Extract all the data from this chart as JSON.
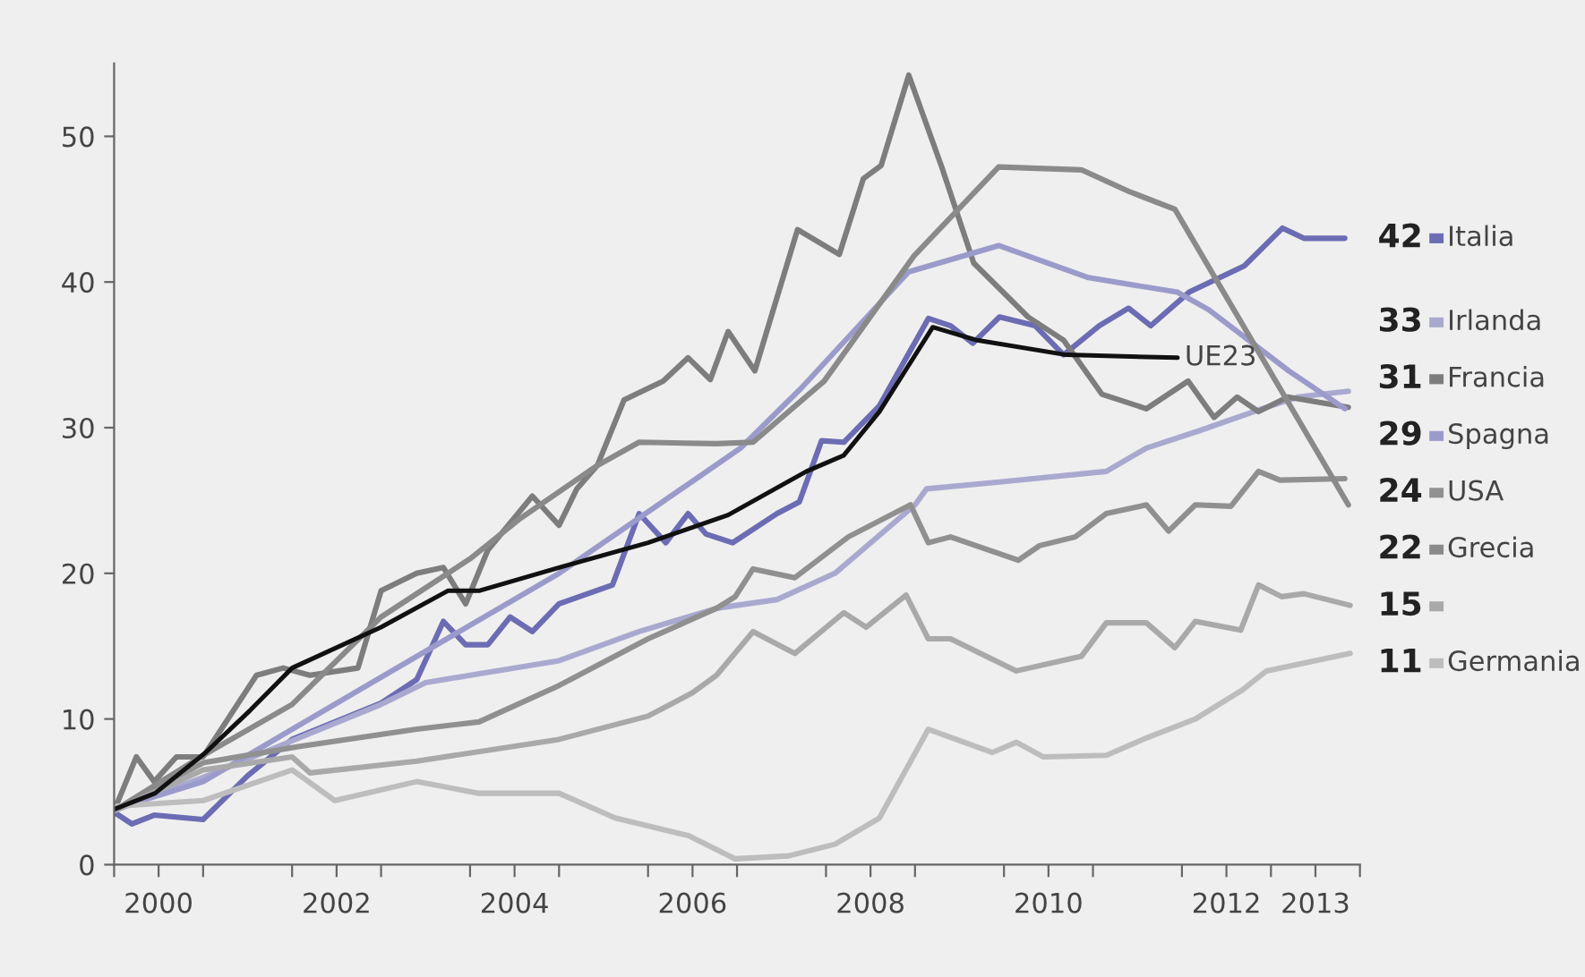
{
  "chart_data": {
    "type": "line",
    "xlim": [
      2000,
      2014
    ],
    "ylim": [
      0,
      55
    ],
    "xticks": [
      {
        "value": 2000,
        "label": null
      },
      {
        "value": 2001,
        "label": null
      },
      {
        "value": 2002,
        "label": null
      },
      {
        "value": 2003,
        "label": null
      },
      {
        "value": 2004,
        "label": null
      },
      {
        "value": 2005,
        "label": null
      },
      {
        "value": 2006,
        "label": null
      },
      {
        "value": 2007,
        "label": null
      },
      {
        "value": 2008,
        "label": null
      },
      {
        "value": 2009,
        "label": null
      },
      {
        "value": 2010,
        "label": null
      },
      {
        "value": 2011,
        "label": null
      },
      {
        "value": 2012,
        "label": null
      },
      {
        "value": 2013,
        "label": null
      },
      {
        "value": 2014,
        "label": null
      },
      {
        "value": 2000.5,
        "label": "2000"
      },
      {
        "value": 2002.5,
        "label": "2002"
      },
      {
        "value": 2004.5,
        "label": "2004"
      },
      {
        "value": 2006.5,
        "label": "2006"
      },
      {
        "value": 2008.5,
        "label": "2008"
      },
      {
        "value": 2010.5,
        "label": "2010"
      },
      {
        "value": 2012.5,
        "label": "2012"
      },
      {
        "value": 2013.5,
        "label": "2013"
      }
    ],
    "yticks": [
      0,
      10,
      20,
      30,
      40,
      50
    ],
    "grid": false,
    "legend": "right",
    "annotations": [
      "42",
      "33",
      "31",
      "29",
      "24",
      "22",
      "15",
      "11"
    ],
    "series": [
      {
        "name": "Italia",
        "color": "#6c6cb4",
        "x": [
          2000.0,
          2000.2,
          2000.45,
          2001.0,
          2001.5,
          2002.0,
          2003.0,
          2003.4,
          2003.7,
          2003.95,
          2004.2,
          2004.45,
          2004.7,
          2005.0,
          2005.6,
          2005.9,
          2006.2,
          2006.45,
          2006.65,
          2006.95,
          2007.45,
          2007.7,
          2007.95,
          2008.2,
          2008.6,
          2009.15,
          2009.4,
          2009.65,
          2009.95,
          2010.35,
          2010.67,
          2011.07,
          2011.4,
          2011.65,
          2012.08,
          2012.7,
          2013.13,
          2013.37,
          2013.83
        ],
        "values": [
          3.6,
          2.8,
          3.4,
          3.1,
          6.1,
          8.6,
          11.1,
          12.7,
          16.7,
          15.1,
          15.1,
          17.0,
          16.0,
          17.9,
          19.2,
          24.1,
          22.1,
          24.1,
          22.7,
          22.1,
          24.1,
          24.9,
          29.1,
          29.0,
          31.5,
          37.5,
          37.0,
          35.8,
          37.6,
          37.0,
          35.0,
          37.0,
          38.2,
          37.0,
          39.3,
          41.1,
          43.7,
          43.0,
          43.0
        ]
      },
      {
        "name": "Irlanda",
        "color": "#a9a9d0",
        "x": [
          2000.0,
          2001.0,
          2002.0,
          2003.0,
          2003.5,
          2004.0,
          2005.0,
          2005.9,
          2006.77,
          2007.45,
          2008.1,
          2009.0,
          2009.13,
          2010.0,
          2011.15,
          2011.6,
          2012.2,
          2012.9,
          2013.3,
          2013.87
        ],
        "values": [
          3.7,
          6.0,
          8.5,
          11.0,
          12.5,
          13.0,
          14.0,
          16.0,
          17.6,
          18.2,
          20.0,
          24.7,
          25.8,
          26.3,
          27.0,
          28.6,
          29.8,
          31.3,
          32.1,
          32.5
        ]
      },
      {
        "name": "Francia",
        "color": "#7d7d7d",
        "x": [
          2000.0,
          2000.25,
          2000.45,
          2000.7,
          2001.0,
          2001.6,
          2001.9,
          2002.2,
          2002.74,
          2003.0,
          2003.4,
          2003.7,
          2003.95,
          2004.2,
          2004.7,
          2005.0,
          2005.2,
          2005.43,
          2005.73,
          2006.17,
          2006.45,
          2006.7,
          2006.9,
          2007.2,
          2007.68,
          2008.15,
          2008.42,
          2008.62,
          2008.93,
          2009.3,
          2009.66,
          2010.27,
          2010.67,
          2011.1,
          2011.6,
          2012.07,
          2012.36,
          2012.62,
          2012.86,
          2013.19,
          2013.87
        ],
        "values": [
          3.7,
          7.4,
          5.7,
          7.4,
          7.4,
          13.0,
          13.5,
          13.0,
          13.5,
          18.8,
          20.0,
          20.4,
          17.9,
          21.6,
          25.3,
          23.3,
          25.8,
          27.4,
          31.9,
          33.2,
          34.8,
          33.3,
          36.6,
          33.9,
          43.6,
          41.9,
          47.1,
          48.0,
          54.2,
          47.9,
          41.3,
          37.6,
          36.0,
          32.3,
          31.3,
          33.2,
          30.7,
          32.1,
          31.1,
          32.1,
          31.4
        ]
      },
      {
        "name": "Spagna",
        "color": "#9b9bcb",
        "x": [
          2000.0,
          2000.1,
          2001.0,
          2002.0,
          2005.0,
          2007.04,
          2007.72,
          2008.93,
          2009.94,
          2010.95,
          2011.95,
          2012.3,
          2013.2,
          2013.83
        ],
        "values": [
          3.7,
          4.0,
          5.7,
          9.3,
          20.0,
          28.6,
          32.7,
          40.7,
          42.5,
          40.3,
          39.3,
          38.1,
          33.9,
          31.3
        ]
      },
      {
        "name": "USA",
        "color": "#909090",
        "x": [
          2000.0,
          2001.0,
          2002.07,
          2003.4,
          2004.1,
          2005.0,
          2006.0,
          2006.77,
          2006.98,
          2007.18,
          2007.65,
          2008.25,
          2008.95,
          2009.15,
          2009.4,
          2010.16,
          2010.4,
          2010.8,
          2011.15,
          2011.6,
          2011.85,
          2012.15,
          2012.55,
          2012.86,
          2013.1,
          2013.83
        ],
        "values": [
          3.7,
          7.0,
          8.1,
          9.3,
          9.8,
          12.3,
          15.5,
          17.6,
          18.4,
          20.3,
          19.7,
          22.5,
          24.7,
          22.1,
          22.5,
          20.9,
          21.9,
          22.5,
          24.1,
          24.7,
          22.9,
          24.7,
          24.6,
          27.0,
          26.4,
          26.5
        ]
      },
      {
        "name": "Grecia",
        "color": "#8a8a8a",
        "x": [
          2000.0,
          2001.0,
          2002.0,
          2003.0,
          2004.0,
          2004.55,
          2005.43,
          2005.9,
          2006.77,
          2007.18,
          2007.98,
          2008.99,
          2009.94,
          2010.87,
          2011.41,
          2011.92,
          2013.87
        ],
        "values": [
          3.7,
          7.5,
          11.0,
          17.0,
          21.0,
          23.7,
          27.4,
          29.0,
          28.9,
          29.0,
          33.2,
          41.8,
          47.9,
          47.7,
          46.2,
          45.0,
          24.7
        ]
      },
      {
        "color": "#a9a9a9",
        "x": [
          2000.0,
          2001.0,
          2002.0,
          2002.2,
          2003.4,
          2005.0,
          2006.0,
          2006.5,
          2006.77,
          2007.18,
          2007.65,
          2008.2,
          2008.45,
          2008.9,
          2009.15,
          2009.4,
          2010.14,
          2010.87,
          2011.15,
          2011.6,
          2011.92,
          2012.15,
          2012.66,
          2012.86,
          2013.12,
          2013.37,
          2013.89
        ],
        "values": [
          3.7,
          6.5,
          7.4,
          6.3,
          7.1,
          8.6,
          10.2,
          11.8,
          13.0,
          16.0,
          14.5,
          17.3,
          16.3,
          18.5,
          15.5,
          15.5,
          13.3,
          14.3,
          16.6,
          16.6,
          14.9,
          16.7,
          16.1,
          19.2,
          18.4,
          18.6,
          17.8
        ]
      },
      {
        "name": "Germania",
        "color": "#bdbdbd",
        "x": [
          2000.0,
          2001.0,
          2002.0,
          2002.48,
          2003.4,
          2004.1,
          2005.0,
          2005.63,
          2006.45,
          2006.98,
          2007.58,
          2008.1,
          2008.6,
          2009.15,
          2009.87,
          2010.14,
          2010.44,
          2011.15,
          2011.6,
          2012.15,
          2012.68,
          2012.95,
          2013.89
        ],
        "values": [
          4.0,
          4.4,
          6.5,
          4.4,
          5.7,
          4.9,
          4.9,
          3.2,
          2.0,
          0.4,
          0.6,
          1.4,
          3.2,
          9.3,
          7.7,
          8.4,
          7.4,
          7.5,
          8.7,
          10.0,
          12.0,
          13.3,
          14.5
        ]
      },
      {
        "name": "UE23",
        "color": "#111111",
        "x": [
          2000.0,
          2000.46,
          2001.03,
          2001.53,
          2002.0,
          2003.0,
          2003.75,
          2004.1,
          2005.0,
          2006.0,
          2006.9,
          2007.78,
          2008.2,
          2008.6,
          2009.2,
          2009.7,
          2010.7,
          2011.95
        ],
        "values": [
          3.8,
          4.9,
          7.7,
          10.6,
          13.5,
          16.3,
          18.8,
          18.8,
          20.4,
          22.1,
          24.0,
          27.0,
          28.1,
          31.1,
          36.9,
          36.0,
          35.0,
          34.8
        ]
      }
    ]
  }
}
